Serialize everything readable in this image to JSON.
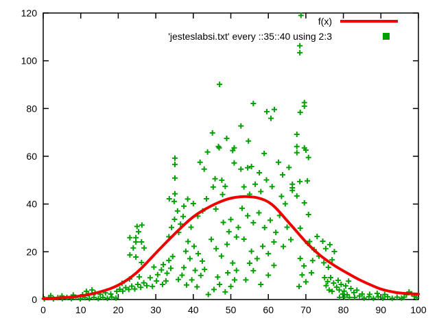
{
  "chart_data": {
    "type": "scatter",
    "title": "",
    "xlabel": "",
    "ylabel": "",
    "grid": false,
    "legend_position": "top-right-inside",
    "x_axis": {
      "min": 0,
      "max": 100,
      "ticks": [
        0,
        10,
        20,
        30,
        40,
        50,
        60,
        70,
        80,
        90,
        100
      ]
    },
    "y_axis": {
      "min": 0,
      "max": 120,
      "ticks": [
        0,
        20,
        40,
        60,
        80,
        100,
        120
      ]
    },
    "legend": [
      {
        "label": "f(x)",
        "type": "line",
        "color": "#ee0000"
      },
      {
        "label": "'jesteslabsi.txt' every ::35::40 using 2:3",
        "type": "points",
        "marker": "plus",
        "color": "#00a000"
      }
    ],
    "curve": {
      "name": "f(x)",
      "color": "#ee0000",
      "width": 4,
      "points": [
        [
          0,
          0.4
        ],
        [
          5,
          0.7
        ],
        [
          10,
          1.4
        ],
        [
          15,
          3
        ],
        [
          20,
          5.7
        ],
        [
          25,
          11
        ],
        [
          30,
          19.5
        ],
        [
          35,
          27.5
        ],
        [
          40,
          35
        ],
        [
          45,
          39.5
        ],
        [
          48,
          41.5
        ],
        [
          50,
          42.5
        ],
        [
          53,
          43.2
        ],
        [
          56,
          43
        ],
        [
          58,
          42.3
        ],
        [
          60,
          41
        ],
        [
          62,
          38.5
        ],
        [
          65,
          33
        ],
        [
          67,
          29.5
        ],
        [
          70,
          24
        ],
        [
          73,
          19.5
        ],
        [
          75,
          17
        ],
        [
          78,
          13.8
        ],
        [
          80,
          12
        ],
        [
          83,
          9.3
        ],
        [
          85,
          7.7
        ],
        [
          88,
          5.6
        ],
        [
          90,
          4.3
        ],
        [
          93,
          3.2
        ],
        [
          95,
          2.7
        ],
        [
          98,
          2.4
        ],
        [
          100,
          2.3
        ]
      ]
    },
    "scatter": {
      "name": "'jesteslabsi.txt' every ::35::40 using 2:3",
      "color": "#00a000",
      "marker": "plus",
      "points": [
        [
          0.3,
          0.3
        ],
        [
          1.5,
          0.8
        ],
        [
          2.7,
          0.3
        ],
        [
          3.9,
          0.8
        ],
        [
          5.1,
          0.4
        ],
        [
          6.3,
          0.9
        ],
        [
          7.5,
          0.4
        ],
        [
          8.7,
          0.9
        ],
        [
          9.9,
          0.3
        ],
        [
          11.1,
          0.8
        ],
        [
          12.3,
          0.4
        ],
        [
          13.5,
          0.9
        ],
        [
          14.7,
          0.4
        ],
        [
          15.9,
          0.9
        ],
        [
          17.1,
          0.5
        ],
        [
          18.3,
          1
        ],
        [
          19.4,
          0.6
        ],
        [
          10.5,
          2
        ],
        [
          12,
          2.4
        ],
        [
          13.8,
          2.8
        ],
        [
          15.2,
          2.2
        ],
        [
          16.6,
          2.8
        ],
        [
          18,
          2.3
        ],
        [
          11.5,
          3.4
        ],
        [
          13,
          4
        ],
        [
          8,
          1.9
        ],
        [
          5,
          1.5
        ],
        [
          2,
          1.6
        ],
        [
          19.6,
          3.4
        ],
        [
          20.4,
          4.3
        ],
        [
          21.2,
          3.5
        ],
        [
          22,
          5
        ],
        [
          22.8,
          4.2
        ],
        [
          23.6,
          5.6
        ],
        [
          24.4,
          4.4
        ],
        [
          25.2,
          6.3
        ],
        [
          26,
          5.1
        ],
        [
          26.8,
          7
        ],
        [
          23,
          8.6
        ],
        [
          25.6,
          9.5
        ],
        [
          21,
          6.8
        ],
        [
          27.6,
          5.8
        ],
        [
          23.1,
          25.9
        ],
        [
          24.7,
          25.9
        ],
        [
          24.7,
          24.1
        ],
        [
          24,
          21.6
        ],
        [
          26.2,
          24.1
        ],
        [
          26.9,
          21.6
        ],
        [
          24.7,
          17.8
        ],
        [
          26.2,
          15.5
        ],
        [
          23.1,
          18.7
        ],
        [
          25.4,
          28.4
        ],
        [
          25,
          30.6
        ],
        [
          26.3,
          31.2
        ],
        [
          35.1,
          59.2
        ],
        [
          35.1,
          56.6
        ],
        [
          35.1,
          50.9
        ],
        [
          35.1,
          44.3
        ],
        [
          33.6,
          42.2
        ],
        [
          34.9,
          41.1
        ],
        [
          37.5,
          39.1
        ],
        [
          35.8,
          37.1
        ],
        [
          37.3,
          34.8
        ],
        [
          34.2,
          30.2
        ],
        [
          36.1,
          28.1
        ],
        [
          33.5,
          26.3
        ],
        [
          36.6,
          31.6
        ],
        [
          35,
          33.6
        ],
        [
          30.2,
          7.8
        ],
        [
          29.1,
          5.5
        ],
        [
          31.8,
          6.3
        ],
        [
          32.7,
          7.8
        ],
        [
          28.5,
          9.1
        ],
        [
          30.5,
          10.4
        ],
        [
          31.5,
          12.4
        ],
        [
          33,
          11
        ],
        [
          29.5,
          13.6
        ],
        [
          32,
          14.6
        ],
        [
          34,
          13.1
        ],
        [
          33.5,
          16.4
        ],
        [
          34.5,
          18
        ],
        [
          38,
          20.2
        ],
        [
          39.1,
          17.1
        ],
        [
          40.2,
          22.3
        ],
        [
          41.3,
          19.2
        ],
        [
          42.4,
          16.1
        ],
        [
          38.6,
          24.3
        ],
        [
          37,
          10.2
        ],
        [
          36,
          8.4
        ],
        [
          37.5,
          13.4
        ],
        [
          38.2,
          6.1
        ],
        [
          39.6,
          8.2
        ],
        [
          41,
          5.3
        ],
        [
          42,
          10.1
        ],
        [
          40.5,
          12.2
        ],
        [
          43,
          12.6
        ],
        [
          40,
          40.2
        ],
        [
          41.8,
          57.5
        ],
        [
          42.9,
          54.6
        ],
        [
          43.8,
          61.8
        ],
        [
          42.5,
          37.1
        ],
        [
          43.5,
          42.2
        ],
        [
          41.2,
          34.9
        ],
        [
          39.4,
          30.3
        ],
        [
          38.5,
          42.1
        ],
        [
          45.1,
          69.8
        ],
        [
          46.7,
          64.1
        ],
        [
          46.9,
          63.5
        ],
        [
          48.9,
          67.5
        ],
        [
          50.5,
          62.4
        ],
        [
          50.9,
          63.5
        ],
        [
          47,
          90.1
        ],
        [
          45.8,
          50.6
        ],
        [
          47.6,
          50
        ],
        [
          48.5,
          47.4
        ],
        [
          45.3,
          47.1
        ],
        [
          47.8,
          44
        ],
        [
          46,
          37.9
        ],
        [
          50.9,
          57.2
        ],
        [
          44.8,
          25.2
        ],
        [
          46.1,
          21.3
        ],
        [
          47.5,
          18.2
        ],
        [
          49,
          23.1
        ],
        [
          50.5,
          15.3
        ],
        [
          51.5,
          12.2
        ],
        [
          50,
          5.5
        ],
        [
          51,
          8.2
        ],
        [
          49.5,
          28.4
        ],
        [
          51.5,
          26.2
        ],
        [
          48,
          32.3
        ],
        [
          50,
          33.5
        ],
        [
          52,
          30.2
        ],
        [
          44,
          2.1
        ],
        [
          45.5,
          4.2
        ],
        [
          47,
          6.3
        ],
        [
          48.5,
          3.2
        ],
        [
          46.5,
          9.4
        ],
        [
          49.2,
          11.2
        ],
        [
          52.7,
          72.7
        ],
        [
          54.7,
          66.4
        ],
        [
          56,
          82.1
        ],
        [
          59.6,
          78.7
        ],
        [
          61.6,
          79.6
        ],
        [
          60.7,
          75.9
        ],
        [
          52.7,
          54.6
        ],
        [
          54.5,
          55.2
        ],
        [
          55.5,
          55.7
        ],
        [
          57.6,
          53.1
        ],
        [
          58.9,
          61.2
        ],
        [
          62.7,
          57.5
        ],
        [
          53.5,
          47.2
        ],
        [
          55,
          44.1
        ],
        [
          56.5,
          48.3
        ],
        [
          58,
          45.2
        ],
        [
          59.5,
          50.1
        ],
        [
          61,
          47.3
        ],
        [
          53,
          38.2
        ],
        [
          54.5,
          35.1
        ],
        [
          56,
          32.2
        ],
        [
          57.5,
          36.3
        ],
        [
          59,
          30.1
        ],
        [
          60.5,
          33.2
        ],
        [
          62,
          28.1
        ],
        [
          55.5,
          20.2
        ],
        [
          57,
          17.1
        ],
        [
          58.5,
          22.3
        ],
        [
          60,
          19.2
        ],
        [
          61.5,
          24.1
        ],
        [
          53.5,
          25.3
        ],
        [
          54,
          8.2
        ],
        [
          56,
          12.1
        ],
        [
          58,
          6.3
        ],
        [
          60,
          10.2
        ],
        [
          61.5,
          14.3
        ],
        [
          55,
          15.2
        ],
        [
          63.5,
          43.2
        ],
        [
          64.5,
          40.1
        ],
        [
          63,
          35.2
        ],
        [
          65,
          30.3
        ],
        [
          66,
          25.1
        ],
        [
          64,
          22.2
        ],
        [
          66.4,
          48.3
        ],
        [
          66.4,
          46.8
        ],
        [
          66.4,
          45.7
        ],
        [
          65.5,
          55.3
        ],
        [
          63.8,
          52.2
        ],
        [
          68.7,
          119
        ],
        [
          68.4,
          106.3
        ],
        [
          68.4,
          103.4
        ],
        [
          69.6,
          82.5
        ],
        [
          69.6,
          81
        ],
        [
          68.5,
          78.4
        ],
        [
          67.6,
          69.2
        ],
        [
          67.6,
          64.1
        ],
        [
          67.6,
          61.5
        ],
        [
          69.6,
          63.5
        ],
        [
          70,
          62.6
        ],
        [
          70.7,
          59.5
        ],
        [
          68.4,
          49.4
        ],
        [
          70.4,
          49.7
        ],
        [
          67.6,
          43.4
        ],
        [
          69.6,
          40.5
        ],
        [
          70.7,
          35.6
        ],
        [
          68.5,
          29.9
        ],
        [
          68.5,
          17.2
        ],
        [
          69.5,
          14.1
        ],
        [
          70.5,
          23.5
        ],
        [
          71,
          24.3
        ],
        [
          69,
          10.3
        ],
        [
          70,
          7.4
        ],
        [
          71.5,
          11.2
        ],
        [
          68.2,
          5.5
        ],
        [
          71.8,
          16.3
        ],
        [
          74.5,
          24.4
        ],
        [
          76.4,
          23
        ],
        [
          75.3,
          21.3
        ],
        [
          77.6,
          20.1
        ],
        [
          73.5,
          18.2
        ],
        [
          74.8,
          15.4
        ],
        [
          76,
          13.5
        ],
        [
          77,
          16.6
        ],
        [
          73,
          26.4
        ],
        [
          72.2,
          20.9
        ],
        [
          75,
          9.2
        ],
        [
          75.8,
          7.5
        ],
        [
          76.6,
          9.2
        ],
        [
          75.4,
          5.8
        ],
        [
          76.2,
          4
        ],
        [
          77.4,
          6.9
        ],
        [
          78.2,
          5.2
        ],
        [
          77,
          3.4
        ],
        [
          78.6,
          8
        ],
        [
          79.4,
          6.3
        ],
        [
          78.9,
          4
        ],
        [
          79.8,
          2.3
        ],
        [
          80.6,
          5.7
        ],
        [
          81.4,
          7.7
        ],
        [
          80.2,
          3.5
        ],
        [
          81,
          2
        ],
        [
          82,
          4.6
        ],
        [
          82.8,
          2.9
        ],
        [
          83.6,
          3.9
        ],
        [
          79,
          0.9
        ],
        [
          80.3,
          1
        ],
        [
          81.6,
          0.9
        ],
        [
          83,
          0.9
        ],
        [
          84.3,
          1.5
        ],
        [
          85.5,
          0.6
        ],
        [
          86.8,
          1.2
        ],
        [
          88,
          0.5
        ],
        [
          89.3,
          1.1
        ],
        [
          90.5,
          0.6
        ],
        [
          91.8,
          1.2
        ],
        [
          93,
          0.5
        ],
        [
          94.3,
          1
        ],
        [
          95.5,
          0.6
        ],
        [
          96.8,
          2
        ],
        [
          97.5,
          3.2
        ],
        [
          98.2,
          2.4
        ],
        [
          98.9,
          1.4
        ],
        [
          96.2,
          1
        ],
        [
          99.5,
          0.8
        ],
        [
          87,
          2.2
        ],
        [
          89,
          2.6
        ],
        [
          91,
          2.1
        ],
        [
          85,
          2.3
        ]
      ]
    }
  },
  "colors": {
    "background": "#ffffff",
    "frame": "#000000",
    "text": "#000000",
    "curve": "#ee0000",
    "points": "#00a000"
  }
}
